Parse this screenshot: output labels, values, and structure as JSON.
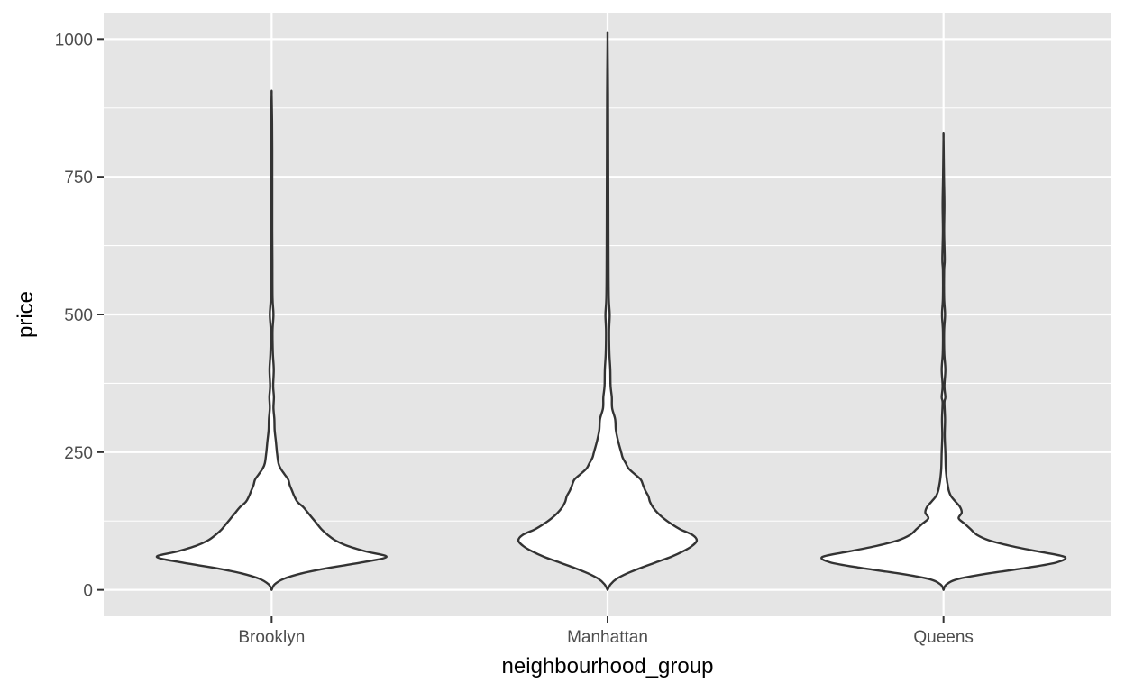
{
  "chart_data": {
    "type": "violin",
    "xlabel": "neighbourhood_group",
    "ylabel": "price",
    "categories": [
      "Brooklyn",
      "Manhattan",
      "Queens"
    ],
    "ylim": [
      -48,
      1048
    ],
    "yticks": [
      0,
      250,
      500,
      750,
      1000
    ],
    "grid": true,
    "legend": "none",
    "colors": {
      "panel": "#e5e5e5",
      "grid": "#ffffff",
      "fill": "#ffffff",
      "outline": "#333333",
      "tick": "#333333"
    },
    "series": [
      {
        "category": "Brooklyn",
        "ymax": 900,
        "profile": [
          [
            0,
            0
          ],
          [
            10,
            0.02
          ],
          [
            20,
            0.08
          ],
          [
            30,
            0.2
          ],
          [
            40,
            0.38
          ],
          [
            50,
            0.6
          ],
          [
            60,
            0.76
          ],
          [
            70,
            0.62
          ],
          [
            80,
            0.5
          ],
          [
            90,
            0.42
          ],
          [
            100,
            0.37
          ],
          [
            110,
            0.33
          ],
          [
            120,
            0.3
          ],
          [
            130,
            0.27
          ],
          [
            140,
            0.24
          ],
          [
            150,
            0.21
          ],
          [
            160,
            0.17
          ],
          [
            170,
            0.15
          ],
          [
            180,
            0.135
          ],
          [
            190,
            0.12
          ],
          [
            200,
            0.11
          ],
          [
            210,
            0.085
          ],
          [
            220,
            0.06
          ],
          [
            230,
            0.045
          ],
          [
            250,
            0.035
          ],
          [
            270,
            0.028
          ],
          [
            290,
            0.02
          ],
          [
            310,
            0.018
          ],
          [
            330,
            0.012
          ],
          [
            350,
            0.015
          ],
          [
            370,
            0.01
          ],
          [
            400,
            0.014
          ],
          [
            430,
            0.008
          ],
          [
            470,
            0.006
          ],
          [
            500,
            0.012
          ],
          [
            530,
            0.006
          ],
          [
            600,
            0.005
          ],
          [
            650,
            0.004
          ],
          [
            700,
            0.004
          ],
          [
            750,
            0.004
          ],
          [
            800,
            0.004
          ],
          [
            850,
            0.003
          ],
          [
            900,
            0
          ]
        ]
      },
      {
        "category": "Manhattan",
        "ymax": 1000,
        "profile": [
          [
            0,
            0
          ],
          [
            10,
            0.02
          ],
          [
            20,
            0.06
          ],
          [
            30,
            0.13
          ],
          [
            40,
            0.22
          ],
          [
            50,
            0.32
          ],
          [
            60,
            0.42
          ],
          [
            70,
            0.5
          ],
          [
            80,
            0.56
          ],
          [
            90,
            0.59
          ],
          [
            100,
            0.56
          ],
          [
            110,
            0.48
          ],
          [
            120,
            0.42
          ],
          [
            130,
            0.37
          ],
          [
            140,
            0.33
          ],
          [
            150,
            0.3
          ],
          [
            160,
            0.28
          ],
          [
            170,
            0.27
          ],
          [
            180,
            0.25
          ],
          [
            190,
            0.235
          ],
          [
            200,
            0.22
          ],
          [
            210,
            0.18
          ],
          [
            220,
            0.14
          ],
          [
            230,
            0.12
          ],
          [
            240,
            0.1
          ],
          [
            250,
            0.09
          ],
          [
            270,
            0.07
          ],
          [
            290,
            0.055
          ],
          [
            310,
            0.05
          ],
          [
            330,
            0.03
          ],
          [
            350,
            0.028
          ],
          [
            370,
            0.02
          ],
          [
            400,
            0.018
          ],
          [
            430,
            0.012
          ],
          [
            470,
            0.01
          ],
          [
            500,
            0.014
          ],
          [
            530,
            0.008
          ],
          [
            600,
            0.006
          ],
          [
            700,
            0.005
          ],
          [
            800,
            0.004
          ],
          [
            900,
            0.003
          ],
          [
            1000,
            0
          ]
        ]
      },
      {
        "category": "Queens",
        "ymax": 820,
        "profile": [
          [
            0,
            0
          ],
          [
            10,
            0.02
          ],
          [
            20,
            0.1
          ],
          [
            30,
            0.3
          ],
          [
            40,
            0.55
          ],
          [
            50,
            0.75
          ],
          [
            60,
            0.8
          ],
          [
            70,
            0.62
          ],
          [
            80,
            0.44
          ],
          [
            90,
            0.3
          ],
          [
            100,
            0.22
          ],
          [
            110,
            0.18
          ],
          [
            120,
            0.14
          ],
          [
            130,
            0.1
          ],
          [
            140,
            0.12
          ],
          [
            150,
            0.11
          ],
          [
            160,
            0.08
          ],
          [
            170,
            0.05
          ],
          [
            180,
            0.035
          ],
          [
            190,
            0.028
          ],
          [
            200,
            0.022
          ],
          [
            220,
            0.015
          ],
          [
            250,
            0.012
          ],
          [
            280,
            0.008
          ],
          [
            310,
            0.01
          ],
          [
            340,
            0.006
          ],
          [
            350,
            0.012
          ],
          [
            370,
            0.006
          ],
          [
            400,
            0.012
          ],
          [
            430,
            0.005
          ],
          [
            470,
            0.004
          ],
          [
            500,
            0.01
          ],
          [
            530,
            0.004
          ],
          [
            580,
            0.004
          ],
          [
            600,
            0.008
          ],
          [
            650,
            0.004
          ],
          [
            700,
            0.006
          ],
          [
            750,
            0.003
          ],
          [
            820,
            0
          ]
        ]
      }
    ]
  }
}
